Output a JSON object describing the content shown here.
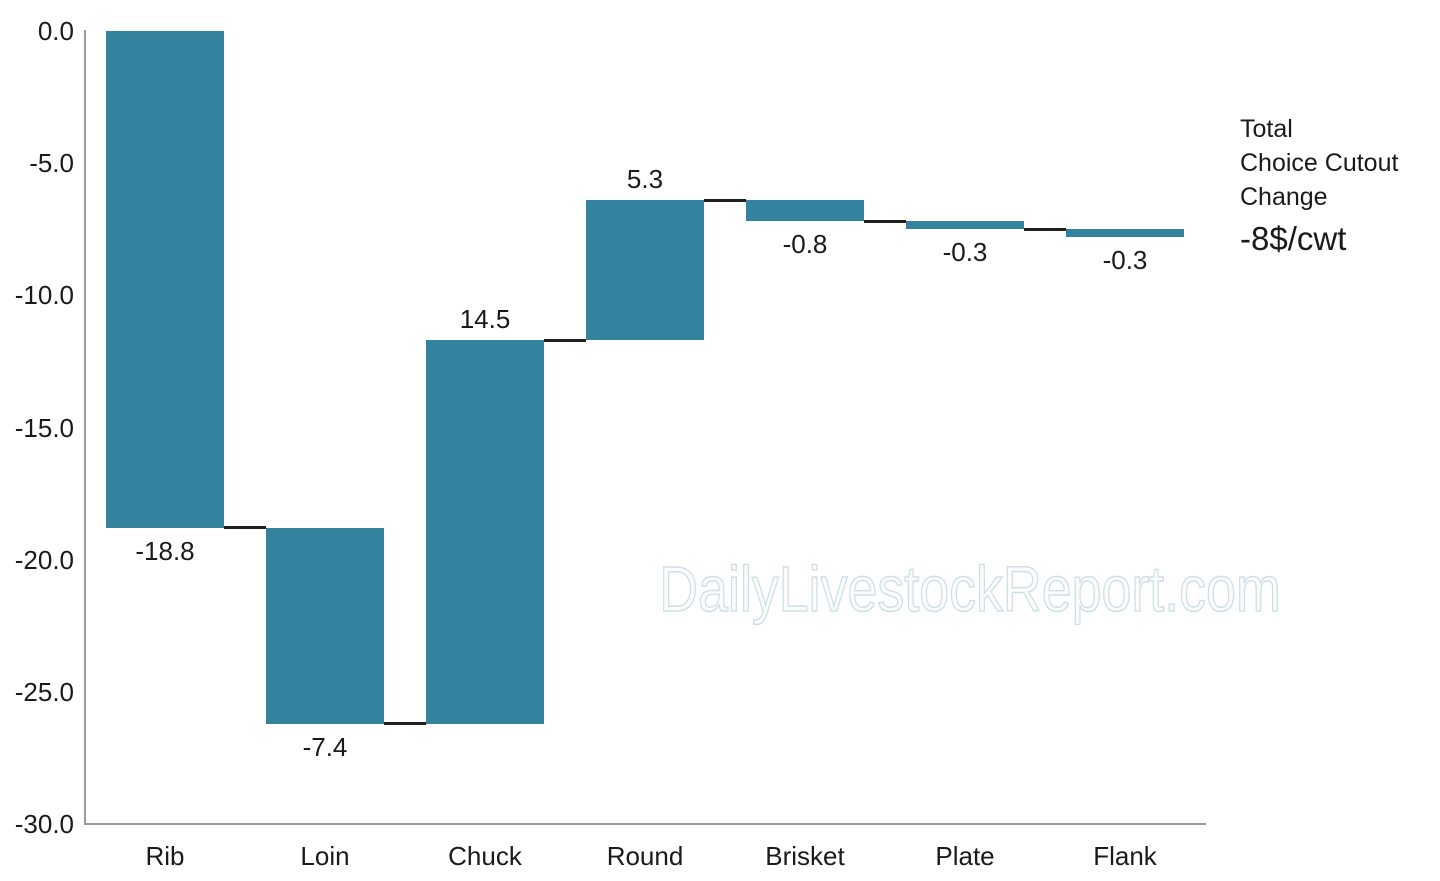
{
  "chart_data": {
    "type": "bar",
    "subtype": "waterfall",
    "categories": [
      "Rib",
      "Loin",
      "Chuck",
      "Round",
      "Brisket",
      "Plate",
      "Flank"
    ],
    "values": [
      -18.8,
      -7.4,
      14.5,
      5.3,
      -0.8,
      -0.3,
      -0.3
    ],
    "value_labels": [
      "-18.8",
      "-7.4",
      "14.5",
      "5.3",
      "-0.8",
      "-0.3",
      "-0.3"
    ],
    "cumulative": [
      -18.8,
      -26.2,
      -11.7,
      -6.4,
      -7.2,
      -7.5,
      -7.8
    ],
    "ylim": [
      -30,
      0
    ],
    "ytick_labels": [
      "0.0",
      "-5.0",
      "-10.0",
      "-15.0",
      "-20.0",
      "-25.0",
      "-30.0"
    ],
    "grid": false,
    "legend": "none",
    "bar_color": "#34839E",
    "connector_color": "#1f1f1f",
    "axis_color": "#9b9b9b",
    "watermark": "DailyLivestockReport.com",
    "watermark_color": "#cfdfe5",
    "total_annotation": {
      "lines": [
        "Total",
        "Choice Cutout",
        "Change"
      ],
      "value": "-8$/cwt"
    }
  }
}
